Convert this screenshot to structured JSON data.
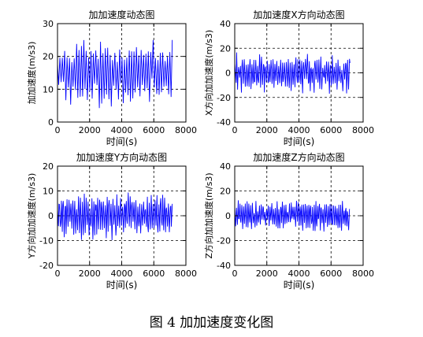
{
  "caption": "图 4  加加速度变化图",
  "chart_data": [
    {
      "type": "line",
      "title": "加加速度动态图",
      "xlabel": "时间(s)",
      "ylabel": "加加速度(m/s3)",
      "xlim": [
        0,
        8000
      ],
      "ylim": [
        0,
        30
      ],
      "xticks": [
        0,
        2000,
        4000,
        6000,
        8000
      ],
      "yticks": [
        0,
        10,
        20,
        30
      ],
      "grid": true,
      "color": "#0000ff",
      "x_range": [
        0,
        7150
      ],
      "envelope": {
        "center": 15,
        "amp": 8,
        "min": 2,
        "max": 25
      },
      "oscillations": 48
    },
    {
      "type": "line",
      "title": "加加速度X方向动态图",
      "xlabel": "时间(s)",
      "ylabel": "X方向加加速度(m/s3)",
      "xlim": [
        0,
        8000
      ],
      "ylim": [
        -40,
        40
      ],
      "xticks": [
        0,
        2000,
        4000,
        6000,
        8000
      ],
      "yticks": [
        -40,
        -20,
        0,
        20,
        40
      ],
      "grid": true,
      "color": "#0000ff",
      "x_range": [
        0,
        7150
      ],
      "envelope": {
        "center": 0,
        "amp": 12,
        "min": -23,
        "max": 23
      },
      "oscillations": 60
    },
    {
      "type": "line",
      "title": "加加速度Y方向动态图",
      "xlabel": "时间(s)",
      "ylabel": "Y方向加加速度(m/s3)",
      "xlim": [
        0,
        8000
      ],
      "ylim": [
        -20,
        20
      ],
      "xticks": [
        0,
        2000,
        4000,
        6000,
        8000
      ],
      "yticks": [
        -20,
        -10,
        0,
        10,
        20
      ],
      "grid": true,
      "color": "#0000ff",
      "x_range": [
        0,
        7150
      ],
      "envelope": {
        "center": 0,
        "amp": 7,
        "min": -15,
        "max": 15
      },
      "oscillations": 60
    },
    {
      "type": "line",
      "title": "加加速度Z方向动态图",
      "xlabel": "时间(s)",
      "ylabel": "Z方向加加速度(m/s3)",
      "xlim": [
        0,
        8000
      ],
      "ylim": [
        -40,
        40
      ],
      "xticks": [
        0,
        2000,
        4000,
        6000,
        8000
      ],
      "yticks": [
        -40,
        -20,
        0,
        20,
        40
      ],
      "grid": true,
      "color": "#0000ff",
      "x_range": [
        0,
        7150
      ],
      "envelope": {
        "center": 0,
        "amp": 10,
        "min": -20,
        "max": 20
      },
      "oscillations": 65
    }
  ]
}
